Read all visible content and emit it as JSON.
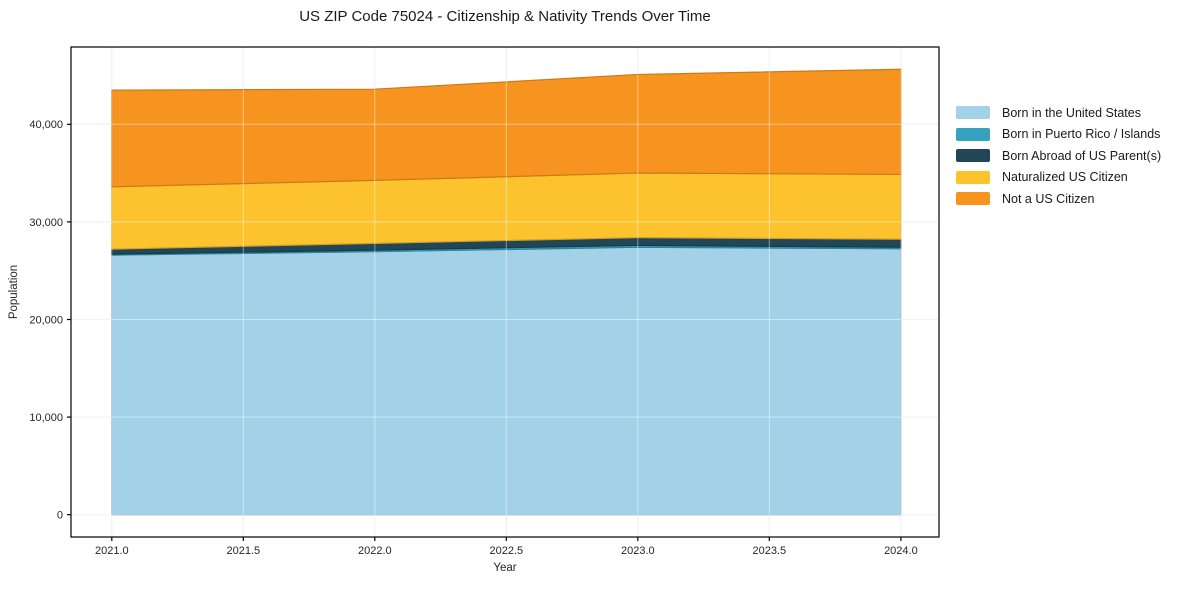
{
  "title": "US ZIP Code 75024 - Citizenship & Nativity Trends Over Time",
  "chart_data": {
    "type": "area",
    "stacked": true,
    "title": "US ZIP Code 75024 - Citizenship & Nativity Trends Over Time",
    "xlabel": "Year",
    "ylabel": "Population",
    "x": [
      2021,
      2022,
      2023,
      2024
    ],
    "series": [
      {
        "name": "Born in the United States",
        "color": "#a3d2e8",
        "values": [
          26600,
          26950,
          27400,
          27250
        ]
      },
      {
        "name": "Born in Puerto Rico / Islands",
        "color": "#35a2bf",
        "values": [
          100,
          160,
          200,
          160
        ]
      },
      {
        "name": "Born Abroad of US Parent(s)",
        "color": "#214657",
        "values": [
          510,
          690,
          790,
          820
        ]
      },
      {
        "name": "Naturalized US Citizen",
        "color": "#fdc32f",
        "values": [
          6390,
          6460,
          6620,
          6640
        ]
      },
      {
        "name": "Not a US Citizen",
        "color": "#f7941f",
        "values": [
          9900,
          9340,
          10100,
          10770
        ]
      }
    ],
    "xticks": [
      2021.0,
      2021.5,
      2022.0,
      2022.5,
      2023.0,
      2023.5,
      2024.0
    ],
    "xtick_labels": [
      "2021.0",
      "2021.5",
      "2022.0",
      "2022.5",
      "2023.0",
      "2023.5",
      "2024.0"
    ],
    "yticks": [
      0,
      10000,
      20000,
      30000,
      40000
    ],
    "ytick_labels": [
      "0",
      "10,000",
      "20,000",
      "30,000",
      "40,000"
    ],
    "xlim": [
      2020.845,
      2024.145
    ],
    "ylim": [
      -2282,
      47922
    ],
    "grid": true,
    "legend_position": "right-outside",
    "colors": {
      "spine": "#000000",
      "tick_text": "#262626",
      "gridline_under": "#e7e7e7",
      "gridline_over": "rgba(255,255,255,0.45)"
    }
  }
}
